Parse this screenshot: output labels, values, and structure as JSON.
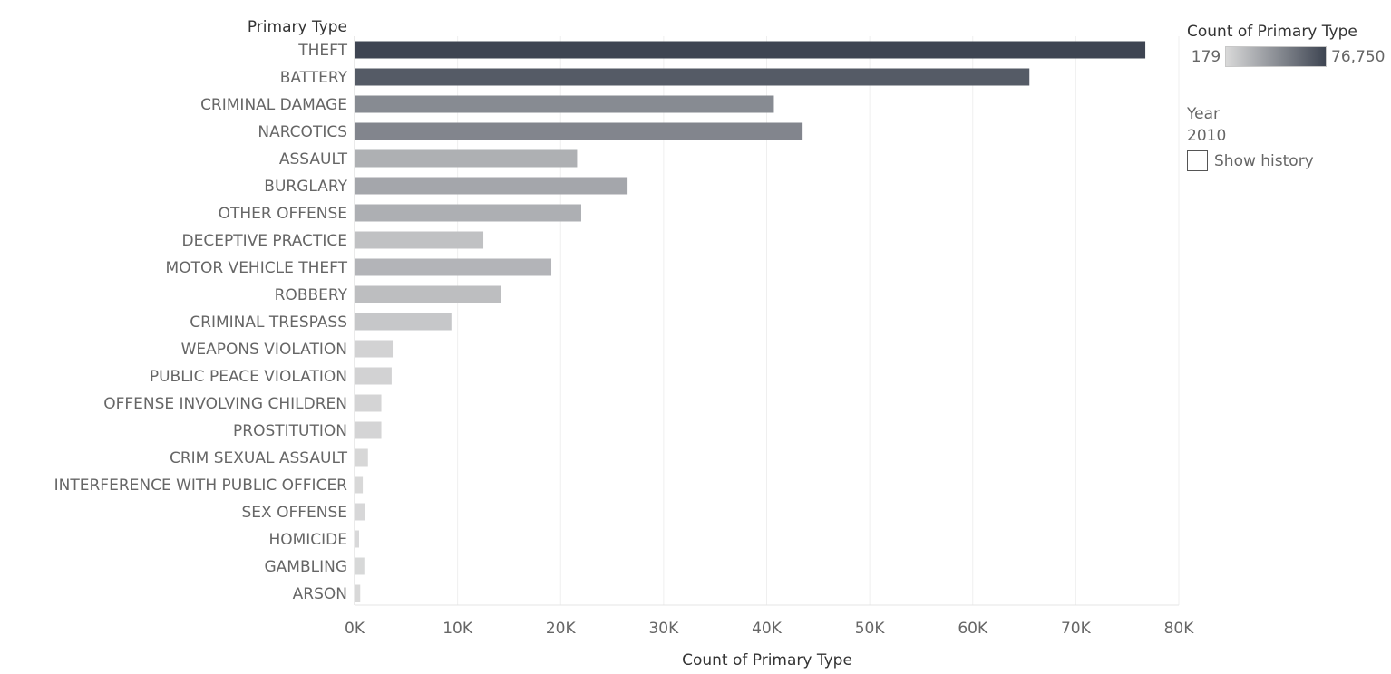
{
  "chart_data": {
    "type": "bar",
    "orientation": "horizontal",
    "header_label": "Primary Type",
    "xlabel": "Count of Primary Type",
    "xlim": [
      0,
      80000
    ],
    "xticks": [
      0,
      10000,
      20000,
      30000,
      40000,
      50000,
      60000,
      70000,
      80000
    ],
    "xtick_labels": [
      "0K",
      "10K",
      "20K",
      "30K",
      "40K",
      "50K",
      "60K",
      "70K",
      "80K"
    ],
    "grid": true,
    "categories": [
      "THEFT",
      "BATTERY",
      "CRIMINAL DAMAGE",
      "NARCOTICS",
      "ASSAULT",
      "BURGLARY",
      "OTHER OFFENSE",
      "DECEPTIVE PRACTICE",
      "MOTOR VEHICLE THEFT",
      "ROBBERY",
      "CRIMINAL TRESPASS",
      "WEAPONS VIOLATION",
      "PUBLIC PEACE VIOLATION",
      "OFFENSE INVOLVING CHILDREN",
      "PROSTITUTION",
      "CRIM SEXUAL ASSAULT",
      "INTERFERENCE WITH PUBLIC OFFICER",
      "SEX OFFENSE",
      "HOMICIDE",
      "GAMBLING",
      "ARSON"
    ],
    "values": [
      76750,
      65500,
      40700,
      43400,
      21600,
      26500,
      22000,
      12500,
      19100,
      14200,
      9400,
      3700,
      3600,
      2600,
      2600,
      1300,
      800,
      1000,
      440,
      950,
      550
    ],
    "color_legend": {
      "title": "Count of Primary Type",
      "min": 179,
      "max": 76750,
      "min_label": "179",
      "max_label": "76,750",
      "min_color": "#d9d9d9",
      "max_color": "#3e4552",
      "placement": "top-right"
    }
  },
  "controls": {
    "year_label": "Year",
    "year_value": "2010",
    "show_history_label": "Show history",
    "show_history_checked": false
  }
}
